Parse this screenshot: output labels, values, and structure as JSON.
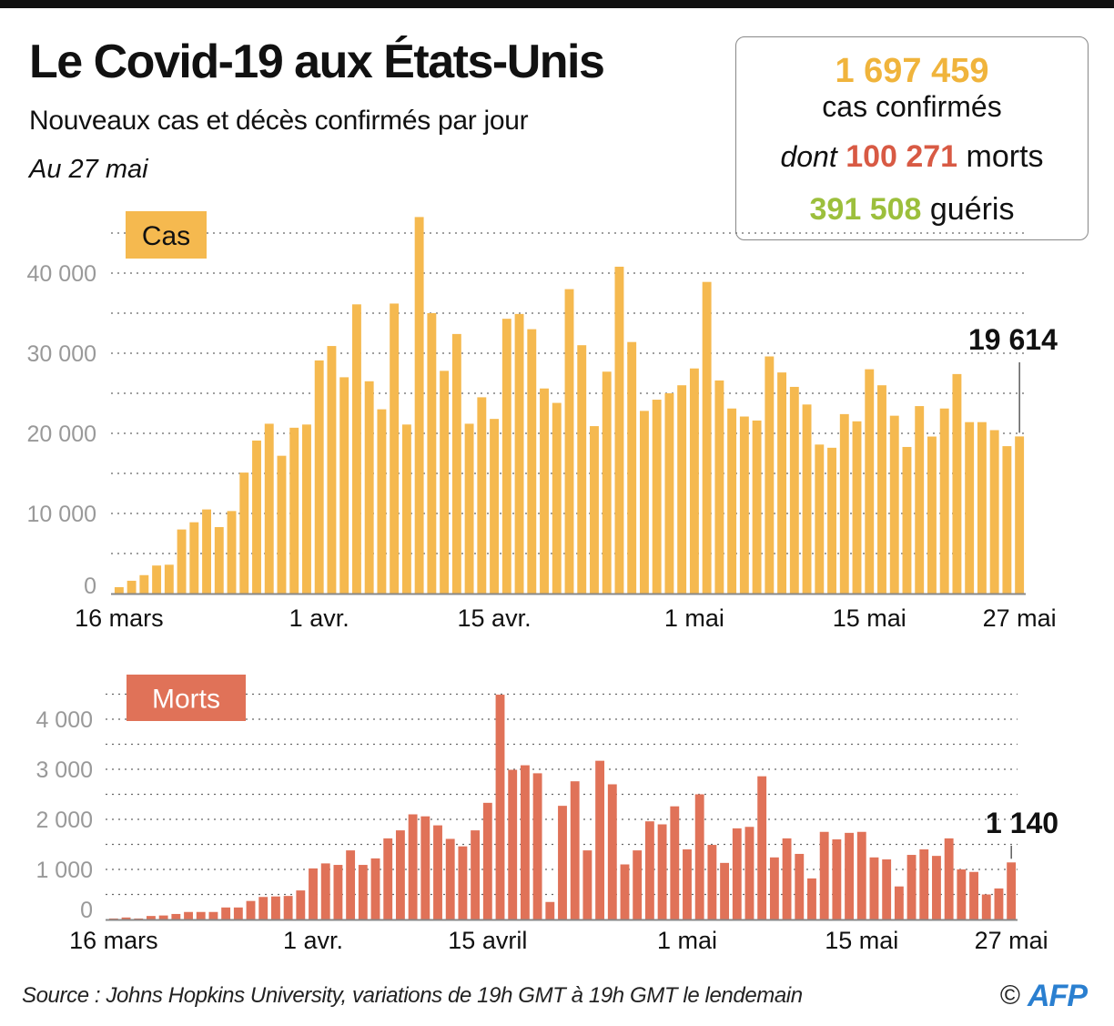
{
  "header": {
    "title": "Le Covid-19 aux États-Unis",
    "subtitle": "Nouveaux cas et décès confirmés par jour",
    "date": "Au 27 mai"
  },
  "stats": {
    "cases_total": "1 697 459",
    "cases_label": "cas confirmés",
    "deaths_prefix": "dont",
    "deaths_total": "100 271",
    "deaths_label": "morts",
    "recovered_total": "391 508",
    "recovered_label": "guéris"
  },
  "colors": {
    "cases": "#f5b94f",
    "deaths": "#e07258",
    "cases_text": "#f0b43c",
    "deaths_text": "#d85a44",
    "recovered_text": "#9cbf3c",
    "afp_blue": "#2a7fd0"
  },
  "chart_data": [
    {
      "type": "bar",
      "title": "Cas",
      "xlabel": "",
      "ylabel": "",
      "ylim": [
        0,
        45000
      ],
      "yticks": [
        0,
        10000,
        20000,
        30000,
        40000
      ],
      "ytick_labels": [
        "0",
        "10 000",
        "20 000",
        "30 000",
        "40 000"
      ],
      "grid": true,
      "grid_step": 5000,
      "xtick_labels": [
        {
          "index": 0,
          "label": "16 mars"
        },
        {
          "index": 16,
          "label": "1 avr."
        },
        {
          "index": 30,
          "label": "15 avr."
        },
        {
          "index": 46,
          "label": "1 mai"
        },
        {
          "index": 60,
          "label": "15 mai"
        },
        {
          "index": 72,
          "label": "27 mai"
        }
      ],
      "start_date": "16 mars",
      "end_date": "27 mai",
      "annotation": {
        "index": 72,
        "label": "19 614"
      },
      "values": [
        800,
        1600,
        2300,
        3500,
        3600,
        8000,
        8900,
        10500,
        8300,
        10300,
        15100,
        19100,
        21200,
        17200,
        20700,
        21100,
        29100,
        30900,
        27000,
        36100,
        26500,
        23000,
        36200,
        21100,
        47000,
        35000,
        27800,
        32400,
        21200,
        24500,
        21800,
        34300,
        34900,
        33000,
        25600,
        23800,
        38000,
        31000,
        20900,
        27700,
        40800,
        31400,
        22800,
        24200,
        25000,
        26000,
        28100,
        38900,
        26600,
        23100,
        22100,
        21600,
        29600,
        27600,
        25800,
        23600,
        18600,
        18200,
        22400,
        21500,
        28000,
        26000,
        22200,
        18300,
        23400,
        19600,
        23100,
        27400,
        21400,
        21400,
        20400,
        18400,
        19614
      ]
    },
    {
      "type": "bar",
      "title": "Morts",
      "xlabel": "",
      "ylabel": "",
      "ylim": [
        0,
        4500
      ],
      "yticks": [
        0,
        1000,
        2000,
        3000,
        4000
      ],
      "ytick_labels": [
        "0",
        "1 000",
        "2 000",
        "3 000",
        "4 000"
      ],
      "grid": true,
      "grid_step": 500,
      "xtick_labels": [
        {
          "index": 0,
          "label": "16 mars"
        },
        {
          "index": 16,
          "label": "1 avr."
        },
        {
          "index": 30,
          "label": "15 avril"
        },
        {
          "index": 46,
          "label": "1 mai"
        },
        {
          "index": 60,
          "label": "15 mai"
        },
        {
          "index": 72,
          "label": "27 mai"
        }
      ],
      "start_date": "16 mars",
      "end_date": "27 mai",
      "annotation": {
        "index": 72,
        "label": "1 140"
      },
      "values": [
        20,
        40,
        20,
        70,
        80,
        110,
        150,
        150,
        150,
        240,
        240,
        370,
        450,
        460,
        470,
        580,
        1020,
        1120,
        1090,
        1380,
        1090,
        1220,
        1620,
        1780,
        2100,
        2060,
        1880,
        1610,
        1460,
        1780,
        2330,
        4490,
        2990,
        3080,
        2920,
        350,
        2270,
        2760,
        1380,
        3170,
        2700,
        1100,
        1380,
        1960,
        1900,
        2260,
        1400,
        2500,
        1490,
        1130,
        1820,
        1850,
        2860,
        1240,
        1620,
        1310,
        820,
        1750,
        1600,
        1730,
        1750,
        1240,
        1200,
        660,
        1290,
        1400,
        1270,
        1620,
        1000,
        950,
        500,
        620,
        1140
      ]
    }
  ],
  "footer": {
    "source": "Source : Johns Hopkins University, variations de 19h GMT à 19h GMT le lendemain",
    "copyright_symbol": "©",
    "logo_text": "AFP"
  }
}
